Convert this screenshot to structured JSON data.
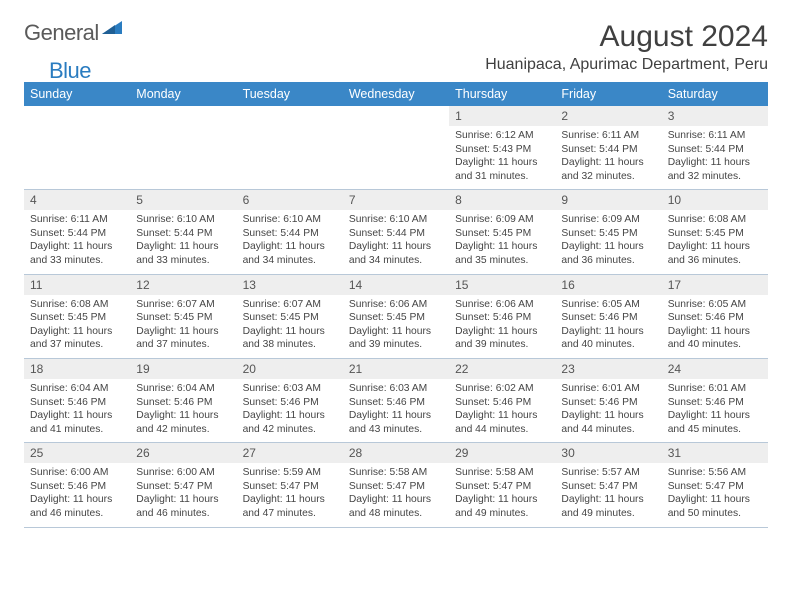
{
  "logo": {
    "part1": "General",
    "part2": "Blue"
  },
  "title": "August 2024",
  "location": "Huanipaca, Apurimac Department, Peru",
  "colors": {
    "header_bg": "#3a87c7",
    "header_text": "#ffffff",
    "daynum_bg": "#eeeeee",
    "row_divider": "#b8c8d8",
    "logo_gray": "#5a5a5a",
    "logo_blue": "#2a7cc0"
  },
  "typography": {
    "title_fontsize": 30,
    "location_fontsize": 16,
    "dayheader_fontsize": 12.5,
    "daynum_fontsize": 12,
    "body_fontsize": 10.3
  },
  "day_headers": [
    "Sunday",
    "Monday",
    "Tuesday",
    "Wednesday",
    "Thursday",
    "Friday",
    "Saturday"
  ],
  "weeks": [
    [
      {
        "n": "",
        "l": []
      },
      {
        "n": "",
        "l": []
      },
      {
        "n": "",
        "l": []
      },
      {
        "n": "",
        "l": []
      },
      {
        "n": "1",
        "l": [
          "Sunrise: 6:12 AM",
          "Sunset: 5:43 PM",
          "Daylight: 11 hours and 31 minutes."
        ]
      },
      {
        "n": "2",
        "l": [
          "Sunrise: 6:11 AM",
          "Sunset: 5:44 PM",
          "Daylight: 11 hours and 32 minutes."
        ]
      },
      {
        "n": "3",
        "l": [
          "Sunrise: 6:11 AM",
          "Sunset: 5:44 PM",
          "Daylight: 11 hours and 32 minutes."
        ]
      }
    ],
    [
      {
        "n": "4",
        "l": [
          "Sunrise: 6:11 AM",
          "Sunset: 5:44 PM",
          "Daylight: 11 hours and 33 minutes."
        ]
      },
      {
        "n": "5",
        "l": [
          "Sunrise: 6:10 AM",
          "Sunset: 5:44 PM",
          "Daylight: 11 hours and 33 minutes."
        ]
      },
      {
        "n": "6",
        "l": [
          "Sunrise: 6:10 AM",
          "Sunset: 5:44 PM",
          "Daylight: 11 hours and 34 minutes."
        ]
      },
      {
        "n": "7",
        "l": [
          "Sunrise: 6:10 AM",
          "Sunset: 5:44 PM",
          "Daylight: 11 hours and 34 minutes."
        ]
      },
      {
        "n": "8",
        "l": [
          "Sunrise: 6:09 AM",
          "Sunset: 5:45 PM",
          "Daylight: 11 hours and 35 minutes."
        ]
      },
      {
        "n": "9",
        "l": [
          "Sunrise: 6:09 AM",
          "Sunset: 5:45 PM",
          "Daylight: 11 hours and 36 minutes."
        ]
      },
      {
        "n": "10",
        "l": [
          "Sunrise: 6:08 AM",
          "Sunset: 5:45 PM",
          "Daylight: 11 hours and 36 minutes."
        ]
      }
    ],
    [
      {
        "n": "11",
        "l": [
          "Sunrise: 6:08 AM",
          "Sunset: 5:45 PM",
          "Daylight: 11 hours and 37 minutes."
        ]
      },
      {
        "n": "12",
        "l": [
          "Sunrise: 6:07 AM",
          "Sunset: 5:45 PM",
          "Daylight: 11 hours and 37 minutes."
        ]
      },
      {
        "n": "13",
        "l": [
          "Sunrise: 6:07 AM",
          "Sunset: 5:45 PM",
          "Daylight: 11 hours and 38 minutes."
        ]
      },
      {
        "n": "14",
        "l": [
          "Sunrise: 6:06 AM",
          "Sunset: 5:45 PM",
          "Daylight: 11 hours and 39 minutes."
        ]
      },
      {
        "n": "15",
        "l": [
          "Sunrise: 6:06 AM",
          "Sunset: 5:46 PM",
          "Daylight: 11 hours and 39 minutes."
        ]
      },
      {
        "n": "16",
        "l": [
          "Sunrise: 6:05 AM",
          "Sunset: 5:46 PM",
          "Daylight: 11 hours and 40 minutes."
        ]
      },
      {
        "n": "17",
        "l": [
          "Sunrise: 6:05 AM",
          "Sunset: 5:46 PM",
          "Daylight: 11 hours and 40 minutes."
        ]
      }
    ],
    [
      {
        "n": "18",
        "l": [
          "Sunrise: 6:04 AM",
          "Sunset: 5:46 PM",
          "Daylight: 11 hours and 41 minutes."
        ]
      },
      {
        "n": "19",
        "l": [
          "Sunrise: 6:04 AM",
          "Sunset: 5:46 PM",
          "Daylight: 11 hours and 42 minutes."
        ]
      },
      {
        "n": "20",
        "l": [
          "Sunrise: 6:03 AM",
          "Sunset: 5:46 PM",
          "Daylight: 11 hours and 42 minutes."
        ]
      },
      {
        "n": "21",
        "l": [
          "Sunrise: 6:03 AM",
          "Sunset: 5:46 PM",
          "Daylight: 11 hours and 43 minutes."
        ]
      },
      {
        "n": "22",
        "l": [
          "Sunrise: 6:02 AM",
          "Sunset: 5:46 PM",
          "Daylight: 11 hours and 44 minutes."
        ]
      },
      {
        "n": "23",
        "l": [
          "Sunrise: 6:01 AM",
          "Sunset: 5:46 PM",
          "Daylight: 11 hours and 44 minutes."
        ]
      },
      {
        "n": "24",
        "l": [
          "Sunrise: 6:01 AM",
          "Sunset: 5:46 PM",
          "Daylight: 11 hours and 45 minutes."
        ]
      }
    ],
    [
      {
        "n": "25",
        "l": [
          "Sunrise: 6:00 AM",
          "Sunset: 5:46 PM",
          "Daylight: 11 hours and 46 minutes."
        ]
      },
      {
        "n": "26",
        "l": [
          "Sunrise: 6:00 AM",
          "Sunset: 5:47 PM",
          "Daylight: 11 hours and 46 minutes."
        ]
      },
      {
        "n": "27",
        "l": [
          "Sunrise: 5:59 AM",
          "Sunset: 5:47 PM",
          "Daylight: 11 hours and 47 minutes."
        ]
      },
      {
        "n": "28",
        "l": [
          "Sunrise: 5:58 AM",
          "Sunset: 5:47 PM",
          "Daylight: 11 hours and 48 minutes."
        ]
      },
      {
        "n": "29",
        "l": [
          "Sunrise: 5:58 AM",
          "Sunset: 5:47 PM",
          "Daylight: 11 hours and 49 minutes."
        ]
      },
      {
        "n": "30",
        "l": [
          "Sunrise: 5:57 AM",
          "Sunset: 5:47 PM",
          "Daylight: 11 hours and 49 minutes."
        ]
      },
      {
        "n": "31",
        "l": [
          "Sunrise: 5:56 AM",
          "Sunset: 5:47 PM",
          "Daylight: 11 hours and 50 minutes."
        ]
      }
    ]
  ]
}
